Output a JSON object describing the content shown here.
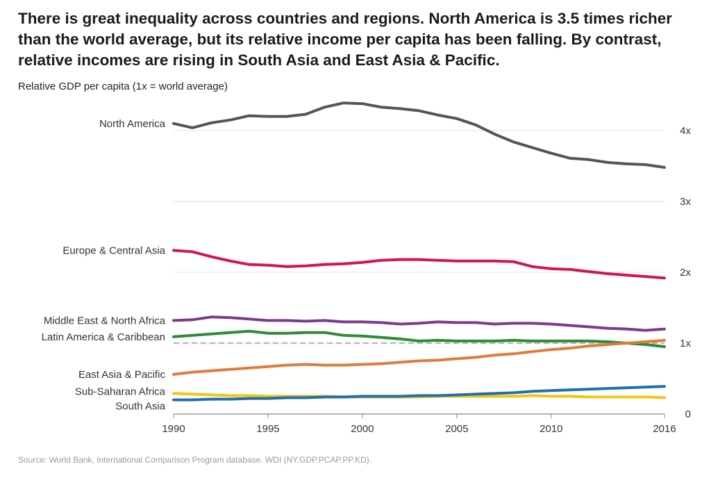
{
  "title": "There is great inequality across countries and regions. North America is 3.5 times richer than the world average, but its relative income per capita has been falling. By contrast, relative incomes are rising in South Asia and East Asia & Pacific.",
  "source": "Source: World Bank, International Comparison Program database. WDI (NY.GDP.PCAP.PP.KD).",
  "chart_data": {
    "type": "line",
    "title": "",
    "ylabel": "Relative GDP per capita (1x = world average)",
    "xlabel": "",
    "xlim": [
      1990,
      2016
    ],
    "ylim": [
      0,
      4.5
    ],
    "x_ticks": [
      {
        "value": 1990,
        "label": "1990"
      },
      {
        "value": 1995,
        "label": "1995"
      },
      {
        "value": 2000,
        "label": "2000"
      },
      {
        "value": 2005,
        "label": "2005"
      },
      {
        "value": 2010,
        "label": "2010"
      },
      {
        "value": 2016,
        "label": "2016"
      }
    ],
    "y_ticks": [
      {
        "value": 0,
        "label": "0"
      },
      {
        "value": 1,
        "label": "1x"
      },
      {
        "value": 2,
        "label": "2x"
      },
      {
        "value": 3,
        "label": "3x"
      },
      {
        "value": 4,
        "label": "4x"
      }
    ],
    "grid": true,
    "y_axis_side": "right",
    "legend": "direct labels left of lines",
    "reference_line": {
      "value": 1,
      "style": "dashed",
      "color": "#bbbbbb"
    },
    "x": [
      1990,
      1991,
      1992,
      1993,
      1994,
      1995,
      1996,
      1997,
      1998,
      1999,
      2000,
      2001,
      2002,
      2003,
      2004,
      2005,
      2006,
      2007,
      2008,
      2009,
      2010,
      2011,
      2012,
      2013,
      2014,
      2015,
      2016
    ],
    "series": [
      {
        "name": "North America",
        "color": "#555555",
        "values": [
          4.1,
          4.04,
          4.11,
          4.15,
          4.21,
          4.2,
          4.2,
          4.23,
          4.33,
          4.39,
          4.38,
          4.33,
          4.31,
          4.28,
          4.22,
          4.17,
          4.08,
          3.95,
          3.84,
          3.76,
          3.68,
          3.61,
          3.59,
          3.55,
          3.53,
          3.52,
          3.48
        ]
      },
      {
        "name": "Europe & Central Asia",
        "color": "#d1164e",
        "values": [
          2.31,
          2.29,
          2.22,
          2.16,
          2.11,
          2.1,
          2.08,
          2.09,
          2.11,
          2.12,
          2.14,
          2.17,
          2.18,
          2.18,
          2.17,
          2.16,
          2.16,
          2.16,
          2.15,
          2.08,
          2.05,
          2.04,
          2.01,
          1.98,
          1.96,
          1.94,
          1.92
        ]
      },
      {
        "name": "Middle East & North Africa",
        "color": "#7b3b8c",
        "values": [
          1.32,
          1.33,
          1.37,
          1.36,
          1.34,
          1.32,
          1.32,
          1.31,
          1.32,
          1.3,
          1.3,
          1.29,
          1.27,
          1.28,
          1.3,
          1.29,
          1.29,
          1.27,
          1.28,
          1.28,
          1.27,
          1.25,
          1.23,
          1.21,
          1.2,
          1.18,
          1.2
        ]
      },
      {
        "name": "Latin America & Caribbean",
        "color": "#2e8b35",
        "values": [
          1.09,
          1.11,
          1.13,
          1.15,
          1.17,
          1.14,
          1.14,
          1.15,
          1.15,
          1.11,
          1.1,
          1.08,
          1.06,
          1.03,
          1.04,
          1.03,
          1.03,
          1.03,
          1.04,
          1.03,
          1.03,
          1.03,
          1.03,
          1.02,
          1.0,
          0.98,
          0.95
        ]
      },
      {
        "name": "East Asia & Pacific",
        "color": "#e07b39",
        "values": [
          0.56,
          0.59,
          0.61,
          0.63,
          0.65,
          0.67,
          0.69,
          0.7,
          0.69,
          0.69,
          0.7,
          0.71,
          0.73,
          0.75,
          0.76,
          0.78,
          0.8,
          0.83,
          0.85,
          0.88,
          0.91,
          0.93,
          0.96,
          0.98,
          1.0,
          1.02,
          1.04
        ]
      },
      {
        "name": "Sub-Saharan Africa",
        "color": "#f2c412",
        "values": [
          0.29,
          0.28,
          0.27,
          0.26,
          0.26,
          0.25,
          0.25,
          0.25,
          0.25,
          0.24,
          0.24,
          0.24,
          0.24,
          0.24,
          0.25,
          0.25,
          0.25,
          0.25,
          0.25,
          0.26,
          0.25,
          0.25,
          0.24,
          0.24,
          0.24,
          0.24,
          0.23
        ]
      },
      {
        "name": "South Asia",
        "color": "#1f6fae",
        "values": [
          0.2,
          0.2,
          0.21,
          0.21,
          0.22,
          0.22,
          0.23,
          0.23,
          0.24,
          0.24,
          0.25,
          0.25,
          0.25,
          0.26,
          0.26,
          0.27,
          0.28,
          0.29,
          0.3,
          0.32,
          0.33,
          0.34,
          0.35,
          0.36,
          0.37,
          0.38,
          0.39
        ]
      }
    ]
  }
}
